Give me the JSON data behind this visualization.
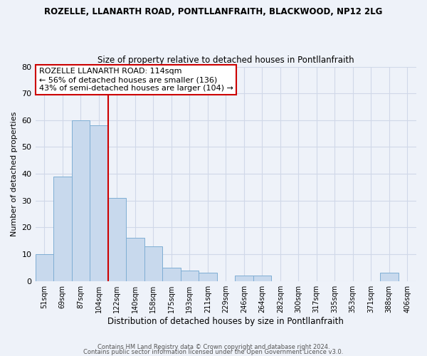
{
  "title": "ROZELLE, LLANARTH ROAD, PONTLLANFRAITH, BLACKWOOD, NP12 2LG",
  "subtitle": "Size of property relative to detached houses in Pontllanfraith",
  "xlabel": "Distribution of detached houses by size in Pontllanfraith",
  "ylabel": "Number of detached properties",
  "bar_labels": [
    "51sqm",
    "69sqm",
    "87sqm",
    "104sqm",
    "122sqm",
    "140sqm",
    "158sqm",
    "175sqm",
    "193sqm",
    "211sqm",
    "229sqm",
    "246sqm",
    "264sqm",
    "282sqm",
    "300sqm",
    "317sqm",
    "335sqm",
    "353sqm",
    "371sqm",
    "388sqm",
    "406sqm"
  ],
  "bar_values": [
    10,
    39,
    60,
    58,
    31,
    16,
    13,
    5,
    4,
    3,
    0,
    2,
    2,
    0,
    0,
    0,
    0,
    0,
    0,
    3,
    0
  ],
  "bar_color": "#c8d9ed",
  "bar_edge_color": "#7faed4",
  "vline_x": 3.5,
  "vline_color": "#cc0000",
  "ylim": [
    0,
    80
  ],
  "yticks": [
    0,
    10,
    20,
    30,
    40,
    50,
    60,
    70,
    80
  ],
  "annotation_title": "ROZELLE LLANARTH ROAD: 114sqm",
  "annotation_line1": "← 56% of detached houses are smaller (136)",
  "annotation_line2": "43% of semi-detached houses are larger (104) →",
  "footer1": "Contains HM Land Registry data © Crown copyright and database right 2024.",
  "footer2": "Contains public sector information licensed under the Open Government Licence v3.0.",
  "background_color": "#eef2f9"
}
